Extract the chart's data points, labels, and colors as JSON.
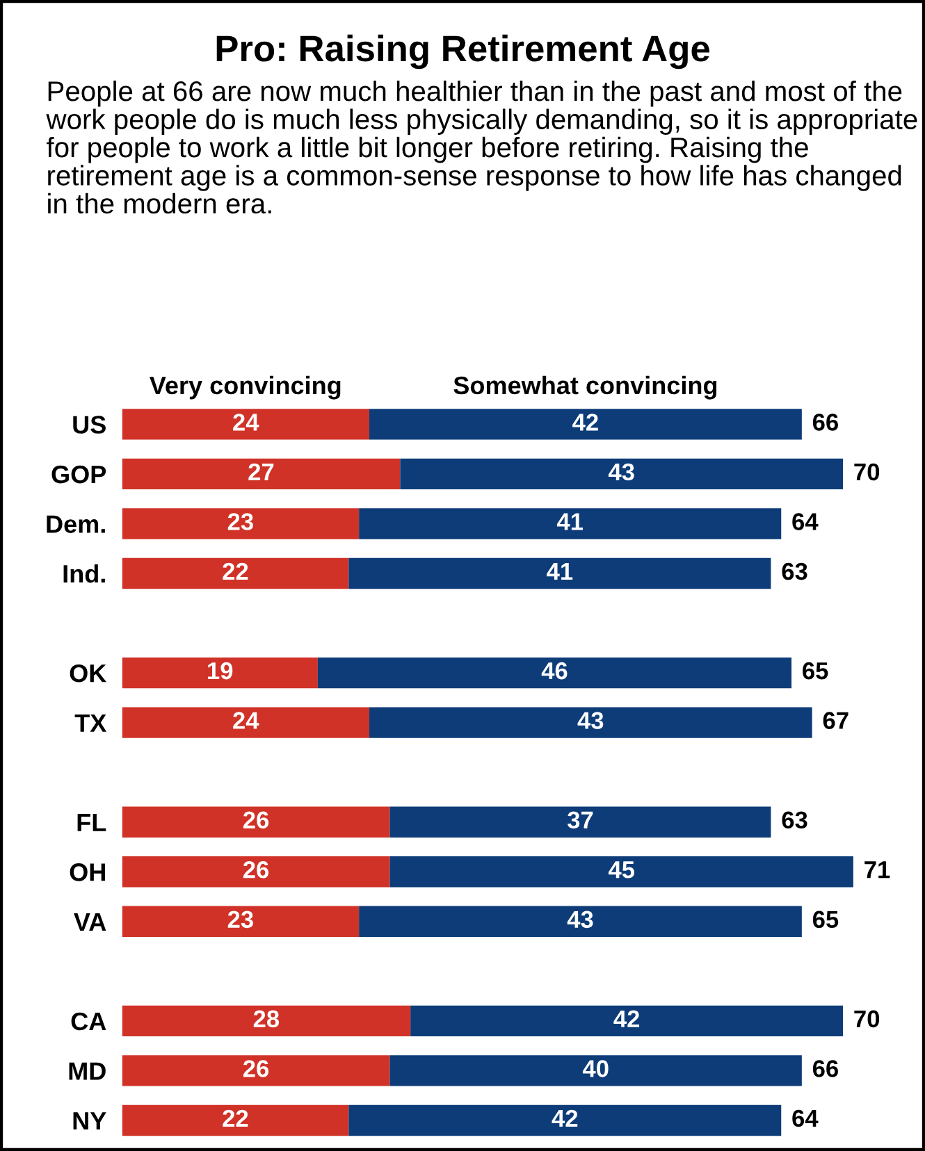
{
  "chart_data": {
    "type": "bar",
    "orientation": "horizontal",
    "stacked": true,
    "title": "Pro: Raising Retirement Age",
    "subtitle": "People at 66 are now much healthier than in the past and most of the work people do is much less physically demanding, so it is appropriate for people to work a little bit longer before retiring. Raising the retirement age is a common-sense response to how life has changed in the modern era.",
    "categories": [
      "US",
      "GOP",
      "Dem.",
      "Ind.",
      null,
      "OK",
      "TX",
      null,
      "FL",
      "OH",
      "VA",
      null,
      "CA",
      "MD",
      "NY"
    ],
    "series": [
      {
        "name": "Very convincing",
        "color": "#d03228",
        "values": [
          24,
          27,
          23,
          22,
          null,
          19,
          24,
          null,
          26,
          26,
          23,
          null,
          28,
          26,
          22
        ]
      },
      {
        "name": "Somewhat convincing",
        "color": "#0d3c78",
        "values": [
          42,
          43,
          41,
          41,
          null,
          46,
          43,
          null,
          37,
          45,
          43,
          null,
          42,
          40,
          42
        ]
      }
    ],
    "totals": [
      "66",
      "70",
      "64",
      "63",
      null,
      "65",
      "67",
      null,
      "63",
      "71",
      "65",
      null,
      "70",
      "66",
      "64"
    ],
    "data_labels": true,
    "legend": "top",
    "grid": false
  }
}
